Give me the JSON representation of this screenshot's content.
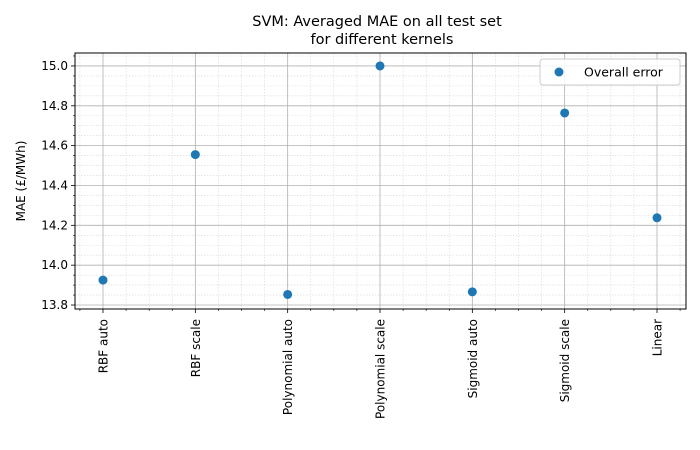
{
  "chart_data": {
    "type": "scatter",
    "title": "SVM: Averaged MAE on all test set",
    "subtitle": "for different kernels",
    "xlabel": "",
    "ylabel": "MAE (£/MWh)",
    "categories": [
      "RBF auto",
      "RBF scale",
      "Polynomial auto",
      "Polynomial scale",
      "Sigmoid auto",
      "Sigmoid scale",
      "Linear"
    ],
    "series": [
      {
        "name": "Overall error",
        "color": "#1f77b4",
        "values": [
          13.925,
          14.555,
          13.853,
          15.0,
          13.866,
          14.764,
          14.238
        ]
      }
    ],
    "ylim": [
      13.78,
      15.065
    ],
    "yticks": [
      13.8,
      14.0,
      14.2,
      14.4,
      14.6,
      14.8,
      15.0
    ],
    "ytick_labels": [
      "13.8",
      "14.0",
      "14.2",
      "14.4",
      "14.6",
      "14.8",
      "15.0"
    ],
    "grid": true,
    "minor_grid": true,
    "legend_position": "top-right"
  }
}
